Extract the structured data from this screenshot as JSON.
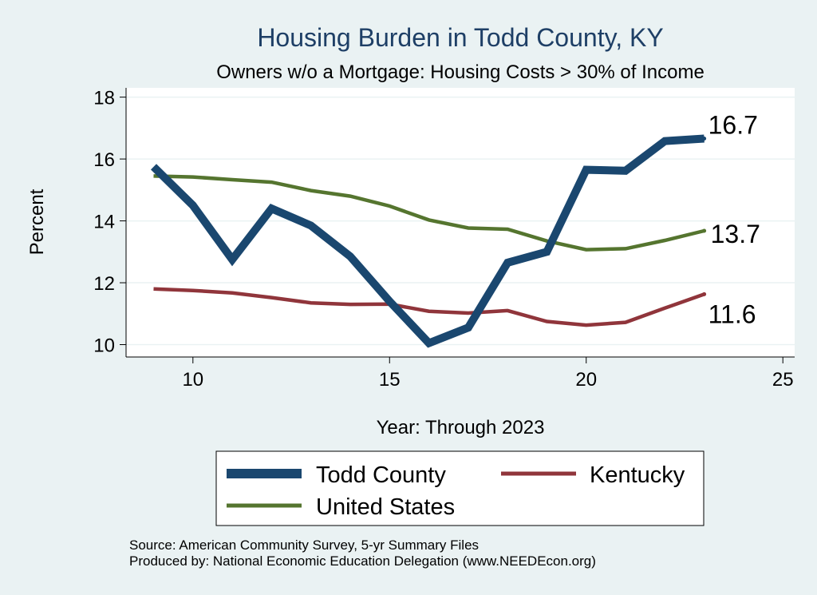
{
  "colors": {
    "background": "#eaf2f3",
    "plot_background": "#ffffff",
    "todd": "#1a476f",
    "kentucky": "#90353b",
    "us": "#55752f",
    "title": "#1e3f66"
  },
  "chart_data": {
    "type": "line",
    "title": "Housing Burden in Todd County, KY",
    "subtitle": "Owners w/o a Mortgage: Housing Costs > 30% of Income",
    "xlabel": "Year: Through 2023",
    "ylabel": "Percent",
    "xlim": [
      8.3,
      25.3
    ],
    "ylim": [
      9.6,
      18.3
    ],
    "xticks": [
      10,
      15,
      20,
      25
    ],
    "yticks": [
      10,
      12,
      14,
      16,
      18
    ],
    "grid": true,
    "legend_position": "bottom",
    "x": [
      9,
      10,
      11,
      12,
      13,
      14,
      15,
      16,
      17,
      18,
      19,
      20,
      21,
      22,
      23
    ],
    "series": [
      {
        "name": "Todd County",
        "color": "#1a476f",
        "values": [
          15.75,
          14.5,
          12.75,
          14.4,
          13.85,
          12.85,
          11.4,
          10.05,
          10.55,
          12.65,
          13.0,
          15.65,
          15.62,
          16.58,
          16.66
        ],
        "end_label": "16.7"
      },
      {
        "name": "Kentucky",
        "color": "#90353b",
        "values": [
          11.8,
          11.75,
          11.67,
          11.52,
          11.35,
          11.3,
          11.31,
          11.08,
          11.02,
          11.1,
          10.75,
          10.63,
          10.72,
          11.18,
          11.63
        ],
        "end_label": "11.6"
      },
      {
        "name": "United States",
        "color": "#55752f",
        "values": [
          15.45,
          15.42,
          15.33,
          15.25,
          14.98,
          14.8,
          14.48,
          14.03,
          13.77,
          13.73,
          13.35,
          13.07,
          13.1,
          13.37,
          13.68
        ],
        "end_label": "13.7"
      }
    ]
  },
  "legend": {
    "items": [
      "Todd County",
      "Kentucky",
      "United States"
    ]
  },
  "source_lines": [
    "Source: American Community Survey, 5-yr Summary Files",
    "Produced by: National Economic Education Delegation (www.NEEDEcon.org)"
  ]
}
